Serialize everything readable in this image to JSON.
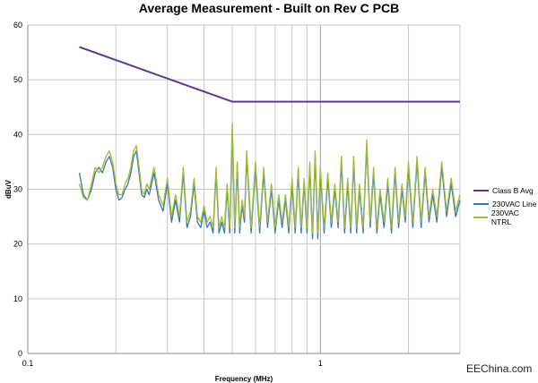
{
  "chart_data": {
    "type": "line",
    "title": "Average Measurement - Built on Rev C PCB",
    "xlabel": "Frequency (MHz)",
    "ylabel": "dBuV",
    "xscale": "log",
    "xlim": [
      0.1,
      3
    ],
    "ylim": [
      0,
      60
    ],
    "x_ticks": [
      0.1,
      1
    ],
    "y_ticks": [
      0,
      10,
      20,
      30,
      40,
      50,
      60
    ],
    "grid": "on",
    "legend_position": "right",
    "series": [
      {
        "name": "Class B Avg",
        "color": "#5b3d87",
        "x": [
          0.15,
          0.5,
          0.5,
          3
        ],
        "y": [
          56,
          46,
          46,
          46
        ]
      },
      {
        "name": "230VAC Line",
        "color": "#3b74b4",
        "x": [
          0.15,
          0.155,
          0.16,
          0.165,
          0.17,
          0.175,
          0.18,
          0.185,
          0.19,
          0.195,
          0.2,
          0.205,
          0.21,
          0.215,
          0.22,
          0.225,
          0.23,
          0.235,
          0.24,
          0.245,
          0.25,
          0.255,
          0.26,
          0.27,
          0.28,
          0.29,
          0.3,
          0.31,
          0.32,
          0.33,
          0.34,
          0.35,
          0.36,
          0.37,
          0.38,
          0.39,
          0.4,
          0.41,
          0.42,
          0.43,
          0.44,
          0.45,
          0.46,
          0.47,
          0.48,
          0.49,
          0.5,
          0.51,
          0.52,
          0.53,
          0.54,
          0.55,
          0.56,
          0.58,
          0.6,
          0.62,
          0.64,
          0.66,
          0.68,
          0.7,
          0.72,
          0.74,
          0.76,
          0.78,
          0.8,
          0.82,
          0.84,
          0.86,
          0.88,
          0.9,
          0.92,
          0.94,
          0.96,
          0.98,
          1.0,
          1.03,
          1.06,
          1.09,
          1.12,
          1.15,
          1.18,
          1.21,
          1.24,
          1.27,
          1.3,
          1.33,
          1.36,
          1.4,
          1.44,
          1.48,
          1.52,
          1.56,
          1.6,
          1.65,
          1.7,
          1.75,
          1.8,
          1.85,
          1.9,
          1.95,
          2.0,
          2.07,
          2.14,
          2.21,
          2.28,
          2.35,
          2.42,
          2.5,
          2.6,
          2.7,
          2.8,
          2.9,
          3.0
        ],
        "y": [
          33,
          29,
          28,
          30,
          33,
          34,
          33,
          35,
          36,
          34,
          30,
          28,
          28.5,
          30,
          31,
          33,
          36,
          37,
          33,
          29,
          28.5,
          30,
          29,
          33,
          28,
          26,
          31,
          24,
          28,
          24,
          33,
          23,
          25,
          31,
          24,
          23,
          26,
          23,
          24,
          22,
          33,
          22,
          24,
          22,
          30,
          22,
          41,
          22,
          34,
          22,
          27,
          24,
          36,
          22,
          34,
          22,
          33,
          23,
          30,
          22,
          28,
          23,
          28,
          22,
          31,
          22,
          33,
          22,
          31,
          22,
          34,
          21,
          36,
          21,
          33,
          22,
          32,
          23,
          30,
          23,
          35,
          22,
          31,
          22,
          35,
          22,
          30,
          22,
          38,
          23,
          33,
          22,
          29,
          23,
          31,
          22,
          33,
          23,
          30,
          24,
          34,
          23,
          35,
          23,
          33,
          24,
          29,
          24,
          34,
          25,
          31,
          25,
          28
        ]
      },
      {
        "name": "230VAC NTRL",
        "color": "#9bbb3c",
        "x": [
          0.15,
          0.155,
          0.16,
          0.165,
          0.17,
          0.175,
          0.18,
          0.185,
          0.19,
          0.195,
          0.2,
          0.205,
          0.21,
          0.215,
          0.22,
          0.225,
          0.23,
          0.235,
          0.24,
          0.245,
          0.25,
          0.255,
          0.26,
          0.27,
          0.28,
          0.29,
          0.3,
          0.31,
          0.32,
          0.33,
          0.34,
          0.35,
          0.36,
          0.37,
          0.38,
          0.39,
          0.4,
          0.41,
          0.42,
          0.43,
          0.44,
          0.45,
          0.46,
          0.47,
          0.48,
          0.49,
          0.5,
          0.51,
          0.52,
          0.53,
          0.54,
          0.55,
          0.56,
          0.58,
          0.6,
          0.62,
          0.64,
          0.66,
          0.68,
          0.7,
          0.72,
          0.74,
          0.76,
          0.78,
          0.8,
          0.82,
          0.84,
          0.86,
          0.88,
          0.9,
          0.92,
          0.94,
          0.96,
          0.98,
          1.0,
          1.03,
          1.06,
          1.09,
          1.12,
          1.15,
          1.18,
          1.21,
          1.24,
          1.27,
          1.3,
          1.33,
          1.36,
          1.4,
          1.44,
          1.48,
          1.52,
          1.56,
          1.6,
          1.65,
          1.7,
          1.75,
          1.8,
          1.85,
          1.9,
          1.95,
          2.0,
          2.07,
          2.14,
          2.21,
          2.28,
          2.35,
          2.42,
          2.5,
          2.6,
          2.7,
          2.8,
          2.9,
          3.0
        ],
        "y": [
          31,
          28.5,
          28,
          31,
          34,
          33,
          34,
          36,
          37,
          35,
          31,
          29,
          29,
          31,
          32,
          34,
          37,
          38,
          34,
          30,
          29,
          31,
          30,
          34,
          29,
          27,
          32,
          25,
          29,
          25,
          34,
          24,
          26,
          32,
          25,
          24,
          27,
          24,
          25,
          23,
          34,
          23,
          25,
          23,
          31,
          23,
          42,
          23,
          35,
          23,
          28,
          25,
          37,
          23,
          35,
          23,
          34,
          24,
          31,
          23,
          29,
          24,
          29,
          23,
          32,
          23,
          34,
          23,
          32,
          23,
          35,
          22,
          37,
          22,
          34,
          23,
          33,
          24,
          31,
          24,
          36,
          23,
          32,
          23,
          36,
          23,
          31,
          23,
          39,
          24,
          34,
          23,
          30,
          24,
          32,
          23,
          34,
          24,
          31,
          25,
          35,
          24,
          36,
          24,
          34,
          25,
          30,
          25,
          35,
          26,
          32,
          26,
          29
        ]
      }
    ]
  },
  "watermark": "EEChina.com"
}
